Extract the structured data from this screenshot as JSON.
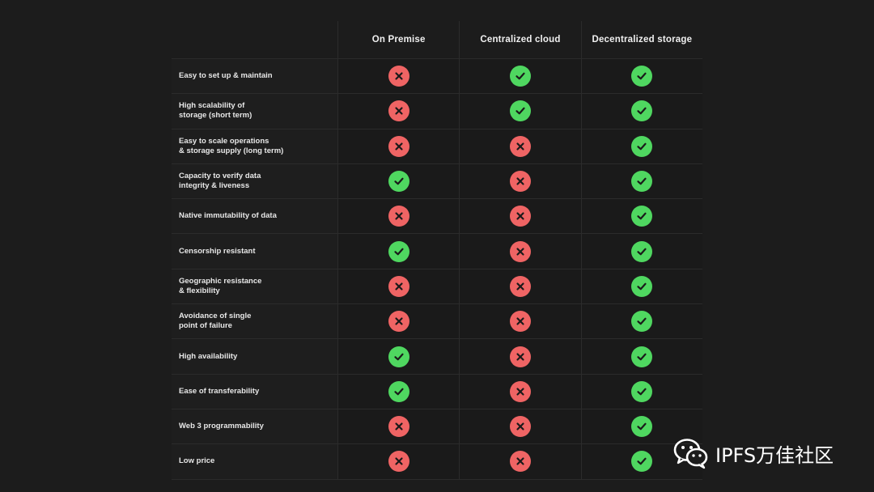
{
  "columns": [
    "On Premise",
    "Centralized cloud",
    "Decentralized storage"
  ],
  "rows": [
    {
      "label": "Easy to set up & maintain",
      "marks": [
        "no",
        "yes",
        "yes"
      ]
    },
    {
      "label": "High scalability of\nstorage (short term)",
      "marks": [
        "no",
        "yes",
        "yes"
      ]
    },
    {
      "label": "Easy to scale operations\n& storage supply (long term)",
      "marks": [
        "no",
        "no",
        "yes"
      ]
    },
    {
      "label": "Capacity to verify data\nintegrity & liveness",
      "marks": [
        "yes",
        "no",
        "yes"
      ]
    },
    {
      "label": "Native immutability of data",
      "marks": [
        "no",
        "no",
        "yes"
      ]
    },
    {
      "label": "Censorship resistant",
      "marks": [
        "yes",
        "no",
        "yes"
      ]
    },
    {
      "label": "Geographic resistance\n& flexibility",
      "marks": [
        "no",
        "no",
        "yes"
      ]
    },
    {
      "label": "Avoidance of single\npoint of failure",
      "marks": [
        "no",
        "no",
        "yes"
      ]
    },
    {
      "label": "High availability",
      "marks": [
        "yes",
        "no",
        "yes"
      ]
    },
    {
      "label": "Ease of transferability",
      "marks": [
        "yes",
        "no",
        "yes"
      ]
    },
    {
      "label": "Web 3 programmability",
      "marks": [
        "no",
        "no",
        "yes"
      ]
    },
    {
      "label": "Low price",
      "marks": [
        "no",
        "no",
        "yes"
      ]
    }
  ],
  "icons": {
    "yes": "check-icon",
    "no": "cross-icon"
  },
  "colors": {
    "yes": "#4fd760",
    "no": "#ef6464",
    "background": "#1c1c1c"
  },
  "watermark": {
    "text": "IPFS万佳社区",
    "icon": "wechat-icon"
  }
}
